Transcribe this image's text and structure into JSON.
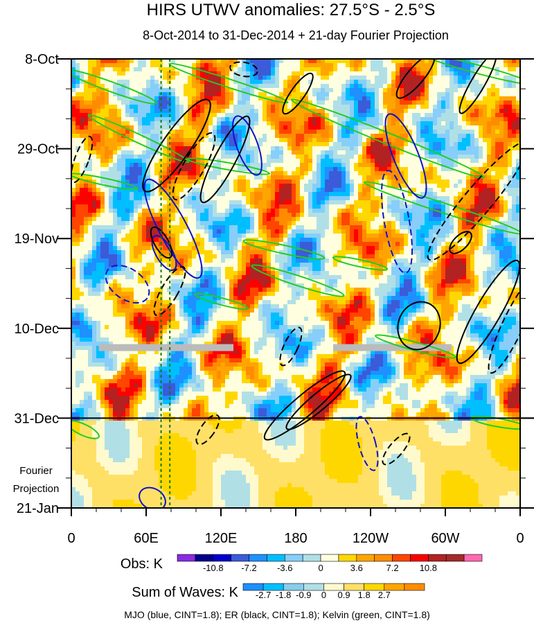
{
  "chart_data": {
    "type": "heatmap",
    "title": "HIRS UTWV anomalies: 27.5°S - 2.5°S",
    "subtitle": "8-Oct-2014 to 31-Dec-2014 + 21-day Fourier Projection",
    "x_ticks": [
      "0",
      "60E",
      "120E",
      "180",
      "120W",
      "60W",
      "0"
    ],
    "x_tick_lon": [
      0,
      60,
      120,
      180,
      240,
      300,
      360
    ],
    "y_ticks": [
      "8-Oct",
      "29-Oct",
      "19-Nov",
      "10-Dec",
      "31-Dec",
      "21-Jan"
    ],
    "y_tick_day": [
      0,
      21,
      42,
      63,
      84,
      105
    ],
    "projection_label_1": "Fourier",
    "projection_label_2": "Projection",
    "projection_start_day": 84,
    "xlim": [
      0,
      360
    ],
    "ylim_days": [
      0,
      105
    ],
    "missing_data_band": {
      "day": 67.5,
      "segments": [
        [
          22,
          130
        ],
        [
          210,
          305
        ]
      ],
      "color": "#bbbbbb"
    },
    "reference_lines_lon": [
      72,
      79
    ],
    "obs_colorbar": {
      "label": "Obs: K",
      "levels": [
        "-10.8",
        "-7.2",
        "-3.6",
        "0",
        "3.6",
        "7.2",
        "10.8"
      ],
      "colors": [
        "#8a2be2",
        "#00008b",
        "#0000cd",
        "#3b5bd8",
        "#1e90ff",
        "#00bfff",
        "#87cefa",
        "#b0e0e6",
        "#ffffe0",
        "#ffd700",
        "#ffa500",
        "#ff8c00",
        "#ff4500",
        "#ff0000",
        "#b22222",
        "#a52a2a",
        "#ff69b4"
      ]
    },
    "waves_colorbar": {
      "label": "Sum of Waves: K",
      "levels": [
        "-2.7",
        "-1.8",
        "-0.9",
        "0",
        "0.9",
        "1.8",
        "2.7"
      ],
      "colors": [
        "#1e90ff",
        "#00bfff",
        "#87ceeb",
        "#b0e0e6",
        "#fffacd",
        "#ffe066",
        "#ffd700",
        "#ffa500",
        "#ff8c00"
      ]
    },
    "footer": "MJO (blue, CINT=1.8); ER (black, CINT=1.8); Kelvin (green, CINT=1.8)",
    "series_legend": [
      {
        "name": "MJO",
        "color": "#1010cc"
      },
      {
        "name": "ER",
        "color": "#000000"
      },
      {
        "name": "Kelvin",
        "color": "#22cc22"
      }
    ]
  }
}
